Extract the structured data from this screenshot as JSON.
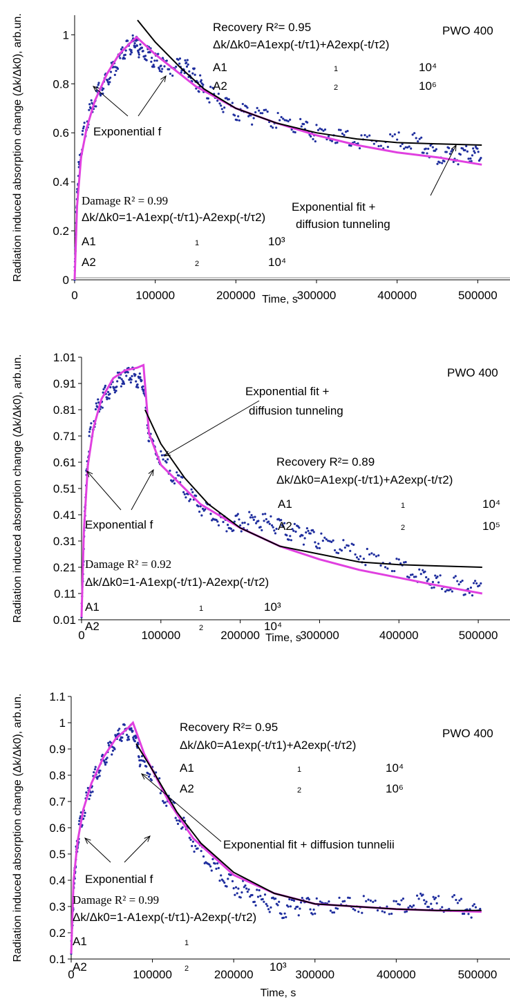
{
  "chart_data": [
    {
      "type": "scatter",
      "title": "PWO 400",
      "xlabel": "Time, s",
      "ylabel": "Radiation induced absorption change (Δk/Δk0), arb.un.",
      "xlim": [
        0,
        540000
      ],
      "ylim": [
        0,
        1.08
      ],
      "x_ticks": [
        "0",
        "100000",
        "200000",
        "300000",
        "400000",
        "500000"
      ],
      "y_ticks": [
        "0",
        "0.2",
        "0.4",
        "0.6",
        "0.8",
        "1"
      ],
      "y_tick_values": [
        0,
        0.2,
        0.4,
        0.6,
        0.8,
        1.0
      ],
      "series": [
        {
          "kind": "points",
          "color": "#1f2e9e",
          "points": [
            [
              0,
              0
            ],
            [
              2000,
              0.25
            ],
            [
              5000,
              0.45
            ],
            [
              10000,
              0.58
            ],
            [
              20000,
              0.7
            ],
            [
              30000,
              0.77
            ],
            [
              40000,
              0.82
            ],
            [
              50000,
              0.87
            ],
            [
              60000,
              0.92
            ],
            [
              70000,
              0.96
            ],
            [
              75000,
              0.97
            ],
            [
              80000,
              0.93
            ],
            [
              90000,
              0.92
            ],
            [
              100000,
              0.9
            ],
            [
              110000,
              0.87
            ],
            [
              130000,
              0.87
            ],
            [
              140000,
              0.86
            ],
            [
              150000,
              0.82
            ],
            [
              160000,
              0.78
            ],
            [
              180000,
              0.72
            ],
            [
              200000,
              0.69
            ],
            [
              220000,
              0.67
            ],
            [
              250000,
              0.65
            ],
            [
              280000,
              0.62
            ],
            [
              300000,
              0.6
            ],
            [
              330000,
              0.59
            ],
            [
              360000,
              0.57
            ],
            [
              400000,
              0.57
            ],
            [
              430000,
              0.56
            ],
            [
              450000,
              0.51
            ],
            [
              470000,
              0.5
            ],
            [
              490000,
              0.51
            ],
            [
              505000,
              0.52
            ]
          ]
        },
        {
          "kind": "line",
          "color": "#e040e0",
          "points": [
            [
              0,
              0
            ],
            [
              3000,
              0.3
            ],
            [
              8000,
              0.5
            ],
            [
              15000,
              0.62
            ],
            [
              25000,
              0.73
            ],
            [
              40000,
              0.84
            ],
            [
              55000,
              0.92
            ],
            [
              70000,
              0.97
            ],
            [
              77000,
              0.99
            ],
            [
              100000,
              0.92
            ],
            [
              150000,
              0.79
            ],
            [
              200000,
              0.7
            ],
            [
              250000,
              0.64
            ],
            [
              300000,
              0.59
            ],
            [
              350000,
              0.55
            ],
            [
              400000,
              0.52
            ],
            [
              450000,
              0.5
            ],
            [
              505000,
              0.47
            ]
          ]
        },
        {
          "kind": "line",
          "color": "#000000",
          "points": [
            [
              78000,
              1.06
            ],
            [
              100000,
              0.97
            ],
            [
              130000,
              0.87
            ],
            [
              160000,
              0.78
            ],
            [
              200000,
              0.7
            ],
            [
              250000,
              0.64
            ],
            [
              300000,
              0.6
            ],
            [
              350000,
              0.575
            ],
            [
              400000,
              0.56
            ],
            [
              450000,
              0.555
            ],
            [
              505000,
              0.55
            ]
          ]
        }
      ],
      "annotations": {
        "recovery": "Recovery R²= 0.95",
        "recovery_eq": "Δk/Δk0=A1exp(-t/τ1)+A2exp(-t/τ2)",
        "recovery_a1": "A1",
        "recovery_a1_sub": "1",
        "recovery_a1_val": "10⁴",
        "recovery_a2": "A2",
        "recovery_a2_sub": "2",
        "recovery_a2_val": "10⁶",
        "fit_label": "Exponential f",
        "fit_tunnel_1": "Exponential fit +",
        "fit_tunnel_2": "diffusion tunneling",
        "damage": "Damage R² = 0.99",
        "damage_eq": "Δk/Δk0=1-A1exp(-t/τ1)-A2exp(-t/τ2)",
        "damage_a1": "A1",
        "damage_a1_sub": "1",
        "damage_a1_val": "10³",
        "damage_a2": "A2",
        "damage_a2_sub": "2",
        "damage_a2_val": "10⁴"
      }
    },
    {
      "type": "scatter",
      "title": "PWO 400",
      "xlabel": "Time, s",
      "ylabel": "Radiation induced absorption change (Δk/Δk0), arb.un.",
      "xlim": [
        0,
        540000
      ],
      "ylim": [
        0.01,
        1.01
      ],
      "x_ticks": [
        "0",
        "100000",
        "200000",
        "300000",
        "400000",
        "500000"
      ],
      "y_ticks": [
        "0.01",
        "0.11",
        "0.21",
        "0.31",
        "0.41",
        "0.51",
        "0.61",
        "0.71",
        "0.81",
        "0.91",
        "1.01"
      ],
      "y_tick_values": [
        0.01,
        0.11,
        0.21,
        0.31,
        0.41,
        0.51,
        0.61,
        0.71,
        0.81,
        0.91,
        1.01
      ],
      "series": [
        {
          "kind": "points",
          "color": "#1f2e9e",
          "points": [
            [
              0,
              0.02
            ],
            [
              3000,
              0.3
            ],
            [
              6000,
              0.55
            ],
            [
              10000,
              0.7
            ],
            [
              20000,
              0.82
            ],
            [
              30000,
              0.87
            ],
            [
              40000,
              0.9
            ],
            [
              50000,
              0.93
            ],
            [
              60000,
              0.94
            ],
            [
              70000,
              0.93
            ],
            [
              78000,
              0.9
            ],
            [
              85000,
              0.7
            ],
            [
              100000,
              0.62
            ],
            [
              120000,
              0.55
            ],
            [
              140000,
              0.47
            ],
            [
              160000,
              0.42
            ],
            [
              180000,
              0.37
            ],
            [
              200000,
              0.38
            ],
            [
              220000,
              0.39
            ],
            [
              240000,
              0.37
            ],
            [
              260000,
              0.35
            ],
            [
              280000,
              0.33
            ],
            [
              300000,
              0.31
            ],
            [
              330000,
              0.28
            ],
            [
              360000,
              0.25
            ],
            [
              400000,
              0.22
            ],
            [
              430000,
              0.18
            ],
            [
              450000,
              0.15
            ],
            [
              480000,
              0.14
            ],
            [
              505000,
              0.13
            ]
          ]
        },
        {
          "kind": "line",
          "color": "#e040e0",
          "points": [
            [
              0,
              0.02
            ],
            [
              3000,
              0.35
            ],
            [
              8000,
              0.6
            ],
            [
              15000,
              0.74
            ],
            [
              25000,
              0.85
            ],
            [
              40000,
              0.93
            ],
            [
              55000,
              0.96
            ],
            [
              70000,
              0.97
            ],
            [
              78000,
              0.98
            ],
            [
              85000,
              0.72
            ],
            [
              100000,
              0.6
            ],
            [
              150000,
              0.45
            ],
            [
              200000,
              0.36
            ],
            [
              250000,
              0.29
            ],
            [
              300000,
              0.24
            ],
            [
              350000,
              0.2
            ],
            [
              400000,
              0.17
            ],
            [
              450000,
              0.14
            ],
            [
              505000,
              0.11
            ]
          ]
        },
        {
          "kind": "line",
          "color": "#000000",
          "points": [
            [
              80000,
              0.81
            ],
            [
              100000,
              0.68
            ],
            [
              130000,
              0.55
            ],
            [
              160000,
              0.45
            ],
            [
              200000,
              0.36
            ],
            [
              250000,
              0.29
            ],
            [
              300000,
              0.26
            ],
            [
              350000,
              0.23
            ],
            [
              400000,
              0.22
            ],
            [
              450000,
              0.215
            ],
            [
              505000,
              0.21
            ]
          ]
        }
      ],
      "annotations": {
        "recovery": "Recovery R²= 0.89",
        "recovery_eq": "Δk/Δk0=A1exp(-t/τ1)+A2exp(-t/τ2)",
        "recovery_a1": "A1",
        "recovery_a1_sub": "1",
        "recovery_a1_val": "10⁴",
        "recovery_a2": "A2",
        "recovery_a2_sub": "2",
        "recovery_a2_val": "10⁵",
        "fit_label": "Exponential f",
        "fit_tunnel_1": "Exponential fit +",
        "fit_tunnel_2": "diffusion tunneling",
        "damage": "Damage R² = 0.92",
        "damage_eq": "Δk/Δk0=1-A1exp(-t/τ1)-A2exp(-t/τ2)",
        "damage_a1": "A1",
        "damage_a1_sub": "1",
        "damage_a1_val": "10³",
        "damage_a2": "A2",
        "damage_a2_sub": "2",
        "damage_a2_val": "10⁴"
      }
    },
    {
      "type": "scatter",
      "title": "PWO 400",
      "xlabel": "Time, s",
      "ylabel": "Radiation induced absorption change (Δk/Δk0), arb.un.",
      "xlim": [
        0,
        540000
      ],
      "ylim": [
        0.1,
        1.1
      ],
      "x_ticks": [
        "0",
        "100000",
        "200000",
        "300000",
        "400000",
        "500000"
      ],
      "y_ticks": [
        "0.1",
        "0.2",
        "0.3",
        "0.4",
        "0.5",
        "0.6",
        "0.7",
        "0.8",
        "0.9",
        "1",
        "1.1"
      ],
      "y_tick_values": [
        0.1,
        0.2,
        0.3,
        0.4,
        0.5,
        0.6,
        0.7,
        0.8,
        0.9,
        1.0,
        1.1
      ],
      "series": [
        {
          "kind": "points",
          "color": "#1f2e9e",
          "points": [
            [
              0,
              0.12
            ],
            [
              3000,
              0.35
            ],
            [
              6000,
              0.5
            ],
            [
              10000,
              0.6
            ],
            [
              20000,
              0.72
            ],
            [
              30000,
              0.8
            ],
            [
              40000,
              0.86
            ],
            [
              50000,
              0.91
            ],
            [
              60000,
              0.95
            ],
            [
              70000,
              0.97
            ],
            [
              78000,
              0.95
            ],
            [
              85000,
              0.85
            ],
            [
              100000,
              0.8
            ],
            [
              120000,
              0.7
            ],
            [
              140000,
              0.6
            ],
            [
              160000,
              0.5
            ],
            [
              180000,
              0.43
            ],
            [
              200000,
              0.38
            ],
            [
              220000,
              0.35
            ],
            [
              240000,
              0.31
            ],
            [
              260000,
              0.29
            ],
            [
              280000,
              0.3
            ],
            [
              300000,
              0.3
            ],
            [
              330000,
              0.3
            ],
            [
              360000,
              0.31
            ],
            [
              400000,
              0.3
            ],
            [
              430000,
              0.33
            ],
            [
              450000,
              0.31
            ],
            [
              480000,
              0.31
            ],
            [
              505000,
              0.27
            ]
          ]
        },
        {
          "kind": "line",
          "color": "#e040e0",
          "points": [
            [
              0,
              0.12
            ],
            [
              3000,
              0.4
            ],
            [
              8000,
              0.55
            ],
            [
              15000,
              0.67
            ],
            [
              25000,
              0.77
            ],
            [
              40000,
              0.87
            ],
            [
              55000,
              0.94
            ],
            [
              70000,
              0.98
            ],
            [
              76000,
              1.0
            ],
            [
              90000,
              0.88
            ],
            [
              120000,
              0.7
            ],
            [
              150000,
              0.56
            ],
            [
              200000,
              0.42
            ],
            [
              250000,
              0.35
            ],
            [
              300000,
              0.31
            ],
            [
              350000,
              0.3
            ],
            [
              400000,
              0.29
            ],
            [
              450000,
              0.285
            ],
            [
              505000,
              0.28
            ]
          ]
        },
        {
          "kind": "line",
          "color": "#000000",
          "points": [
            [
              80000,
              0.92
            ],
            [
              100000,
              0.82
            ],
            [
              130000,
              0.66
            ],
            [
              160000,
              0.54
            ],
            [
              200000,
              0.43
            ],
            [
              250000,
              0.35
            ],
            [
              300000,
              0.31
            ],
            [
              350000,
              0.3
            ],
            [
              400000,
              0.29
            ],
            [
              450000,
              0.285
            ],
            [
              505000,
              0.285
            ]
          ]
        }
      ],
      "annotations": {
        "recovery": "Recovery R²= 0.95",
        "recovery_eq": "Δk/Δk0=A1exp(-t/τ1)+A2exp(-t/τ2)",
        "recovery_a1": "A1",
        "recovery_a1_sub": "1",
        "recovery_a1_val": "10⁴",
        "recovery_a2": "A2",
        "recovery_a2_sub": "2",
        "recovery_a2_val": "10⁶",
        "fit_label": "Exponential f",
        "fit_tunnel_1": "Exponential fit + diffusion tunnelii",
        "fit_tunnel_2": "",
        "damage": "Damage R² = 0.99",
        "damage_eq": "Δk/Δk0=1-A1exp(-t/τ1)-A2exp(-t/τ2)",
        "damage_a1": "A1",
        "damage_a1_sub": "1",
        "damage_a1_val": "",
        "damage_a2": "A2",
        "damage_a2_sub": "2",
        "damage_a2_val": "10³"
      }
    }
  ]
}
